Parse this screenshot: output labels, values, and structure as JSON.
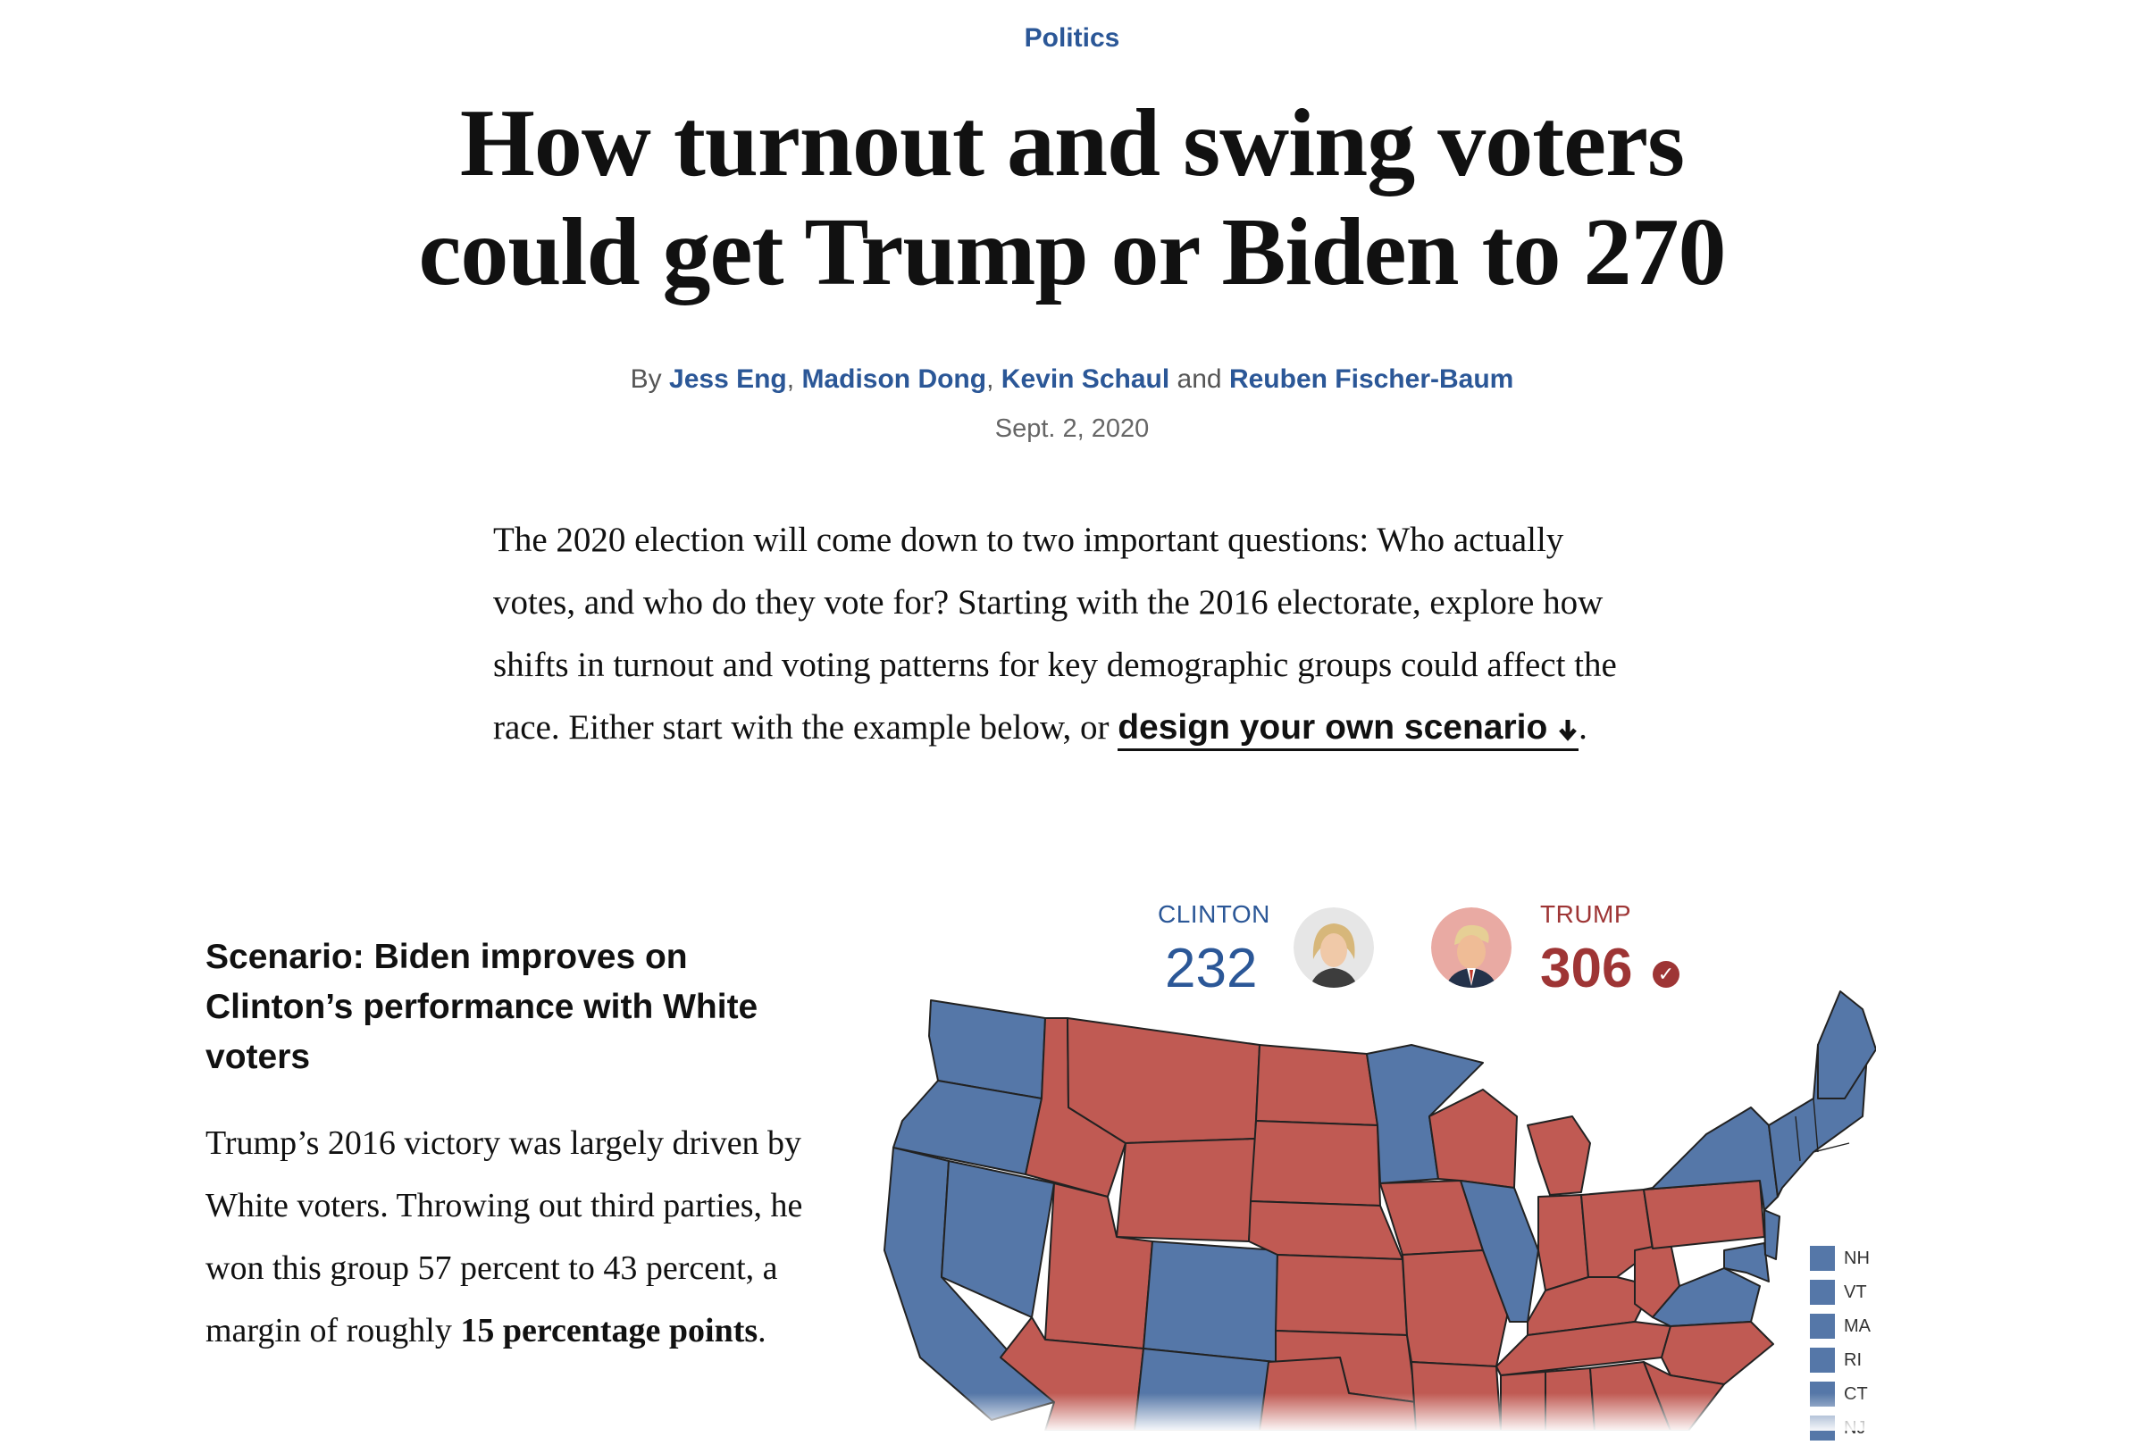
{
  "kicker": "Politics",
  "headline": {
    "line1": "How turnout and swing voters",
    "line2": "could get Trump or Biden to 270"
  },
  "byline": {
    "prefix": "By",
    "authors": [
      "Jess Eng",
      "Madison Dong",
      "Kevin Schaul",
      "Reuben Fischer-Baum"
    ],
    "sep": ",",
    "and": "and"
  },
  "date": "Sept. 2, 2020",
  "intro": {
    "text": "The 2020 election will come down to two important questions: Who actually votes, and who do they vote for? Starting with the 2016 electorate, explore how shifts in turnout and voting patterns for key demographic groups could affect the race. Either start with the example below, or",
    "cta": "design your own scenario",
    "cta_icon": "arrow-down-icon",
    "end": "."
  },
  "scenario": {
    "title": "Scenario: Biden improves on Clinton’s performance with White voters",
    "body_pre": "Trump’s 2016 victory was largely driven by White voters. Throwing out third parties, he won this group 57 percent to 43 percent, a margin of roughly",
    "body_bold": "15 percentage points",
    "body_end": "."
  },
  "results": {
    "dem": {
      "name": "CLINTON",
      "votes": "232",
      "color": "#2b5797"
    },
    "rep": {
      "name": "TRUMP",
      "votes": "306",
      "color": "#9e3535",
      "winner_icon": "check-circle-icon"
    }
  },
  "map": {
    "colors": {
      "dem": "#5577a8",
      "rep": "#c05a53",
      "border": "#222222"
    },
    "small_states": [
      "NH",
      "VT",
      "MA",
      "RI",
      "CT",
      "NJ"
    ]
  }
}
